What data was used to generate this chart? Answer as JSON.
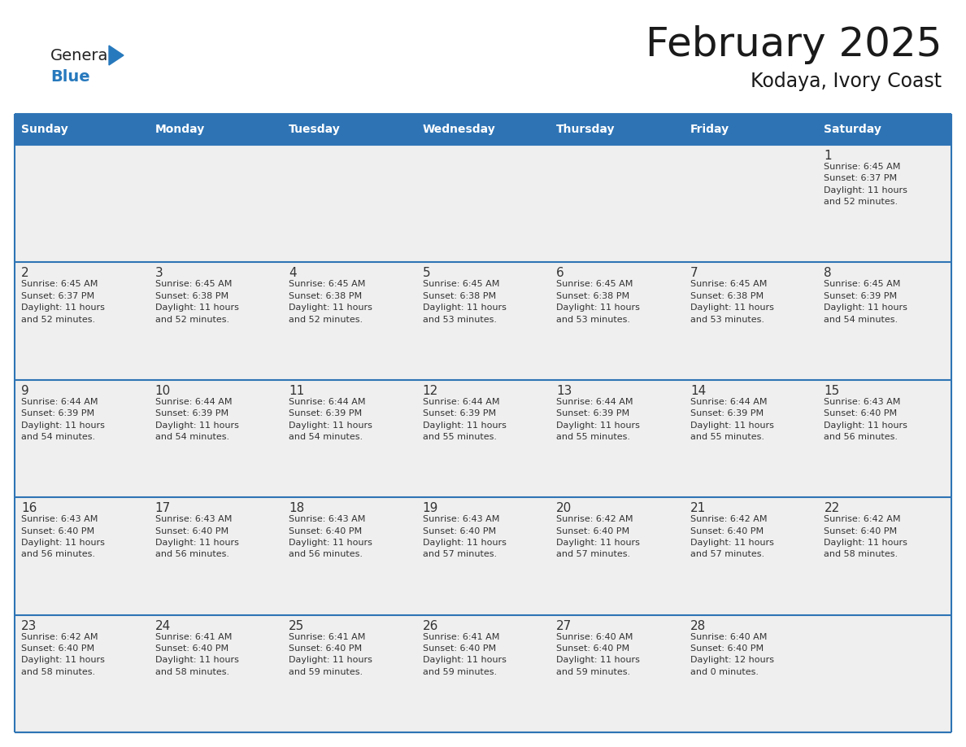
{
  "title": "February 2025",
  "subtitle": "Kodaya, Ivory Coast",
  "header_bg_color": "#2E74B5",
  "header_text_color": "#FFFFFF",
  "cell_bg_color": "#EFEFEF",
  "border_color": "#2E74B5",
  "day_number_color": "#333333",
  "info_text_color": "#333333",
  "bg_color": "#FFFFFF",
  "days_of_week": [
    "Sunday",
    "Monday",
    "Tuesday",
    "Wednesday",
    "Thursday",
    "Friday",
    "Saturday"
  ],
  "logo_general_color": "#222222",
  "logo_blue_color": "#2779BD",
  "calendar_data": [
    [
      null,
      null,
      null,
      null,
      null,
      null,
      1
    ],
    [
      2,
      3,
      4,
      5,
      6,
      7,
      8
    ],
    [
      9,
      10,
      11,
      12,
      13,
      14,
      15
    ],
    [
      16,
      17,
      18,
      19,
      20,
      21,
      22
    ],
    [
      23,
      24,
      25,
      26,
      27,
      28,
      null
    ]
  ],
  "sunrise_data": {
    "1": "Sunrise: 6:45 AM\nSunset: 6:37 PM\nDaylight: 11 hours\nand 52 minutes.",
    "2": "Sunrise: 6:45 AM\nSunset: 6:37 PM\nDaylight: 11 hours\nand 52 minutes.",
    "3": "Sunrise: 6:45 AM\nSunset: 6:38 PM\nDaylight: 11 hours\nand 52 minutes.",
    "4": "Sunrise: 6:45 AM\nSunset: 6:38 PM\nDaylight: 11 hours\nand 52 minutes.",
    "5": "Sunrise: 6:45 AM\nSunset: 6:38 PM\nDaylight: 11 hours\nand 53 minutes.",
    "6": "Sunrise: 6:45 AM\nSunset: 6:38 PM\nDaylight: 11 hours\nand 53 minutes.",
    "7": "Sunrise: 6:45 AM\nSunset: 6:38 PM\nDaylight: 11 hours\nand 53 minutes.",
    "8": "Sunrise: 6:45 AM\nSunset: 6:39 PM\nDaylight: 11 hours\nand 54 minutes.",
    "9": "Sunrise: 6:44 AM\nSunset: 6:39 PM\nDaylight: 11 hours\nand 54 minutes.",
    "10": "Sunrise: 6:44 AM\nSunset: 6:39 PM\nDaylight: 11 hours\nand 54 minutes.",
    "11": "Sunrise: 6:44 AM\nSunset: 6:39 PM\nDaylight: 11 hours\nand 54 minutes.",
    "12": "Sunrise: 6:44 AM\nSunset: 6:39 PM\nDaylight: 11 hours\nand 55 minutes.",
    "13": "Sunrise: 6:44 AM\nSunset: 6:39 PM\nDaylight: 11 hours\nand 55 minutes.",
    "14": "Sunrise: 6:44 AM\nSunset: 6:39 PM\nDaylight: 11 hours\nand 55 minutes.",
    "15": "Sunrise: 6:43 AM\nSunset: 6:40 PM\nDaylight: 11 hours\nand 56 minutes.",
    "16": "Sunrise: 6:43 AM\nSunset: 6:40 PM\nDaylight: 11 hours\nand 56 minutes.",
    "17": "Sunrise: 6:43 AM\nSunset: 6:40 PM\nDaylight: 11 hours\nand 56 minutes.",
    "18": "Sunrise: 6:43 AM\nSunset: 6:40 PM\nDaylight: 11 hours\nand 56 minutes.",
    "19": "Sunrise: 6:43 AM\nSunset: 6:40 PM\nDaylight: 11 hours\nand 57 minutes.",
    "20": "Sunrise: 6:42 AM\nSunset: 6:40 PM\nDaylight: 11 hours\nand 57 minutes.",
    "21": "Sunrise: 6:42 AM\nSunset: 6:40 PM\nDaylight: 11 hours\nand 57 minutes.",
    "22": "Sunrise: 6:42 AM\nSunset: 6:40 PM\nDaylight: 11 hours\nand 58 minutes.",
    "23": "Sunrise: 6:42 AM\nSunset: 6:40 PM\nDaylight: 11 hours\nand 58 minutes.",
    "24": "Sunrise: 6:41 AM\nSunset: 6:40 PM\nDaylight: 11 hours\nand 58 minutes.",
    "25": "Sunrise: 6:41 AM\nSunset: 6:40 PM\nDaylight: 11 hours\nand 59 minutes.",
    "26": "Sunrise: 6:41 AM\nSunset: 6:40 PM\nDaylight: 11 hours\nand 59 minutes.",
    "27": "Sunrise: 6:40 AM\nSunset: 6:40 PM\nDaylight: 11 hours\nand 59 minutes.",
    "28": "Sunrise: 6:40 AM\nSunset: 6:40 PM\nDaylight: 12 hours\nand 0 minutes."
  },
  "fig_width": 11.88,
  "fig_height": 9.18,
  "dpi": 100
}
